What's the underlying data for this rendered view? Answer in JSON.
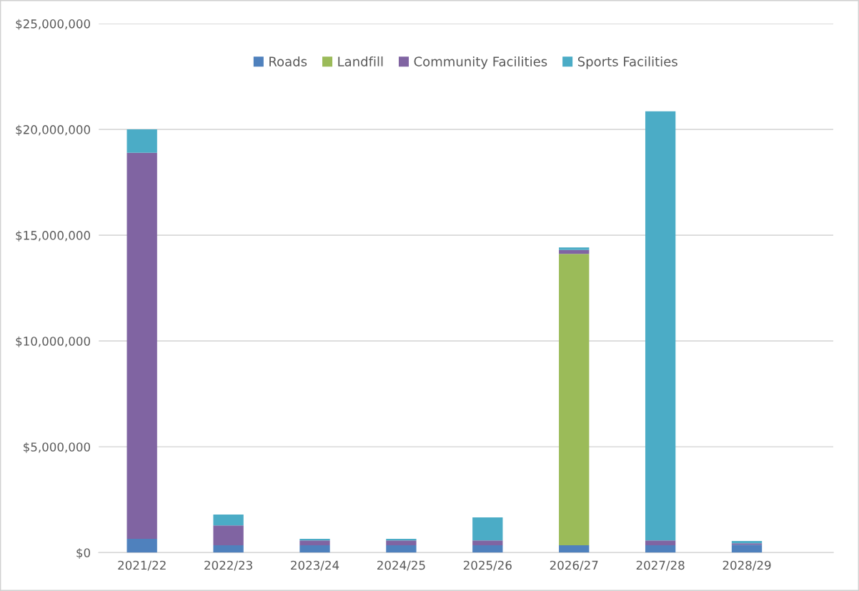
{
  "chart_data": {
    "type": "bar",
    "stacked": true,
    "categories": [
      "2021/22",
      "2022/23",
      "2023/24",
      "2024/25",
      "2025/26",
      "2026/27",
      "2027/28",
      "2028/29"
    ],
    "series": [
      {
        "name": "Roads",
        "color": "#4f81bd",
        "values": [
          650000,
          350000,
          350000,
          350000,
          350000,
          350000,
          350000,
          370000
        ]
      },
      {
        "name": "Landfill",
        "color": "#9bbb59",
        "values": [
          0,
          0,
          0,
          0,
          0,
          13770000,
          0,
          0
        ]
      },
      {
        "name": "Community Facilities",
        "color": "#8064a2",
        "values": [
          18250000,
          930000,
          220000,
          220000,
          220000,
          180000,
          220000,
          70000
        ]
      },
      {
        "name": "Sports Facilities",
        "color": "#4bacc6",
        "values": [
          1100000,
          520000,
          80000,
          80000,
          1090000,
          120000,
          20290000,
          110000
        ]
      }
    ],
    "ylim": [
      0,
      25000000
    ],
    "yticks": [
      {
        "value": 0,
        "label": "$0"
      },
      {
        "value": 5000000,
        "label": "$5,000,000"
      },
      {
        "value": 10000000,
        "label": "$10,000,000"
      },
      {
        "value": 15000000,
        "label": "$15,000,000"
      },
      {
        "value": 20000000,
        "label": "$20,000,000"
      },
      {
        "value": 25000000,
        "label": "$25,000,000"
      }
    ],
    "grid": "y",
    "legend": "top"
  }
}
